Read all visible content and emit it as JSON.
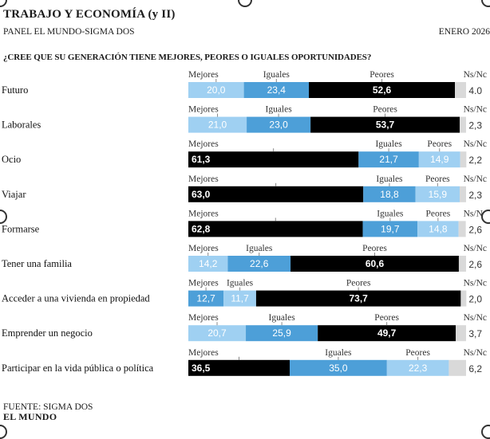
{
  "header": {
    "title": "TRABAJO Y ECONOMÍA (y II)",
    "subtitle": "PANEL EL MUNDO-SIGMA DOS",
    "date": "ENERO 2026",
    "question": "¿CREE QUE SU GENERACIÓN TIENE MEJORES, PEORES O IGUALES OPORTUNIDADES?"
  },
  "footer": {
    "source": "FUENTE: SIGMA DOS",
    "brand": "EL MUNDO"
  },
  "colors": {
    "mejores": "#9fd0f2",
    "iguales": "#4d9fd8",
    "peores": "#000000",
    "nsnc": "#d9d9d9"
  },
  "chart_data": {
    "type": "bar",
    "orientation": "horizontal-stacked",
    "series_names": [
      "Mejores",
      "Iguales",
      "Peores",
      "Ns/Nc"
    ],
    "rows": [
      {
        "label": "Futuro",
        "order": [
          "Mejores",
          "Iguales",
          "Peores"
        ],
        "values": {
          "Mejores": 20.0,
          "Iguales": 23.4,
          "Peores": 52.6,
          "Ns/Nc": 4.0
        },
        "display": {
          "Mejores": "20,0",
          "Iguales": "23,4",
          "Peores": "52,6",
          "Ns/Nc": "4.0"
        }
      },
      {
        "label": "Laborales",
        "order": [
          "Mejores",
          "Iguales",
          "Peores"
        ],
        "values": {
          "Mejores": 21.0,
          "Iguales": 23.0,
          "Peores": 53.7,
          "Ns/Nc": 2.3
        },
        "display": {
          "Mejores": "21,0",
          "Iguales": "23,0",
          "Peores": "53,7",
          "Ns/Nc": "2,3"
        }
      },
      {
        "label": "Ocio",
        "order": [
          "Mejores",
          "Iguales",
          "Peores"
        ],
        "values": {
          "Mejores": 61.3,
          "Iguales": 21.7,
          "Peores": 14.9,
          "Ns/Nc": 2.2
        },
        "display": {
          "Mejores": "61,3",
          "Iguales": "21,7",
          "Peores": "14,9",
          "Ns/Nc": "2,2"
        }
      },
      {
        "label": "Viajar",
        "order": [
          "Mejores",
          "Iguales",
          "Peores"
        ],
        "values": {
          "Mejores": 63.0,
          "Iguales": 18.8,
          "Peores": 15.9,
          "Ns/Nc": 2.3
        },
        "display": {
          "Mejores": "63,0",
          "Iguales": "18,8",
          "Peores": "15,9",
          "Ns/Nc": "2,3"
        }
      },
      {
        "label": "Formarse",
        "order": [
          "Mejores",
          "Iguales",
          "Peores"
        ],
        "values": {
          "Mejores": 62.8,
          "Iguales": 19.7,
          "Peores": 14.8,
          "Ns/Nc": 2.6
        },
        "display": {
          "Mejores": "62,8",
          "Iguales": "19,7",
          "Peores": "14,8",
          "Ns/Nc": "2,6"
        }
      },
      {
        "label": "Tener una familia",
        "order": [
          "Mejores",
          "Iguales",
          "Peores"
        ],
        "values": {
          "Mejores": 14.2,
          "Iguales": 22.6,
          "Peores": 60.6,
          "Ns/Nc": 2.6
        },
        "display": {
          "Mejores": "14,2",
          "Iguales": "22,6",
          "Peores": "60,6",
          "Ns/Nc": "2,6"
        }
      },
      {
        "label": "Acceder a una vivienda en propiedad",
        "order": [
          "Mejores",
          "Iguales",
          "Peores"
        ],
        "values": {
          "Mejores": 12.7,
          "Iguales": 11.7,
          "Peores": 73.7,
          "Ns/Nc": 2.0
        },
        "display": {
          "Mejores": "12,7",
          "Iguales": "11,7",
          "Peores": "73,7",
          "Ns/Nc": "2,0"
        }
      },
      {
        "label": "Emprender un negocio",
        "order": [
          "Mejores",
          "Iguales",
          "Peores"
        ],
        "values": {
          "Mejores": 20.7,
          "Iguales": 25.9,
          "Peores": 49.7,
          "Ns/Nc": 3.7
        },
        "display": {
          "Mejores": "20,7",
          "Iguales": "25,9",
          "Peores": "49,7",
          "Ns/Nc": "3,7"
        }
      },
      {
        "label": "Participar en la vida pública o política",
        "order": [
          "Mejores",
          "Iguales",
          "Peores"
        ],
        "values": {
          "Mejores": 36.5,
          "Iguales": 35.0,
          "Peores": 22.3,
          "Ns/Nc": 6.2
        },
        "display": {
          "Mejores": "36,5",
          "Iguales": "35,0",
          "Peores": "22,3",
          "Ns/Nc": "6,2"
        }
      }
    ],
    "bar_styles": [
      {
        "Mejores": "light",
        "Iguales": "medium",
        "Peores": "dark"
      },
      {
        "Mejores": "light",
        "Iguales": "medium",
        "Peores": "dark"
      },
      {
        "Mejores": "dark",
        "Iguales": "medium",
        "Peores": "light"
      },
      {
        "Mejores": "dark",
        "Iguales": "medium",
        "Peores": "light"
      },
      {
        "Mejores": "dark",
        "Iguales": "medium",
        "Peores": "light"
      },
      {
        "Mejores": "light",
        "Iguales": "medium",
        "Peores": "dark"
      },
      {
        "Mejores": "medium",
        "Iguales": "light",
        "Peores": "dark"
      },
      {
        "Mejores": "light",
        "Iguales": "medium",
        "Peores": "dark"
      },
      {
        "Mejores": "dark",
        "Iguales": "medium",
        "Peores": "light"
      }
    ],
    "xlim": [
      0,
      100
    ]
  }
}
